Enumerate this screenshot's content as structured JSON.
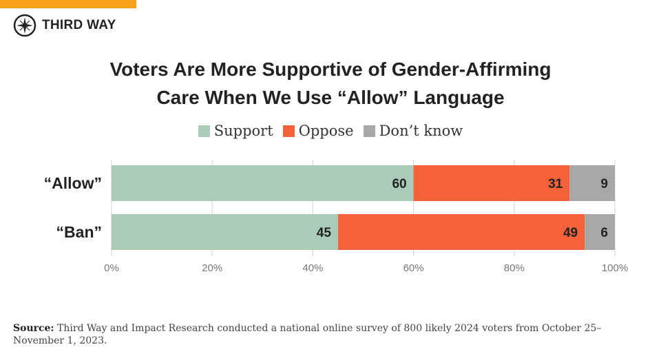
{
  "brand": {
    "name": "THIRD WAY",
    "accent": "#f9a11b"
  },
  "title_line1": "Voters Are More Supportive of Gender-Affirming",
  "title_line2": "Care When We Use “Allow” Language",
  "chart_data": {
    "type": "bar",
    "orientation": "horizontal",
    "stacked": true,
    "categories": [
      "“Allow”",
      "“Ban”"
    ],
    "series": [
      {
        "name": "Support",
        "color": "#a9cbb7",
        "values": [
          60,
          45
        ]
      },
      {
        "name": "Oppose",
        "color": "#f4623a",
        "values": [
          31,
          49
        ]
      },
      {
        "name": "Don’t know",
        "color": "#a7a7a7",
        "values": [
          9,
          6
        ]
      }
    ],
    "xlim": [
      0,
      100
    ],
    "xticks": [
      "0%",
      "20%",
      "40%",
      "60%",
      "80%",
      "100%"
    ],
    "grid": true,
    "legend": "top-center"
  },
  "source": {
    "label": "Source:",
    "text": " Third Way and Impact Research conducted a national online survey of 800 likely 2024 voters from October 25–November 1, 2023."
  }
}
